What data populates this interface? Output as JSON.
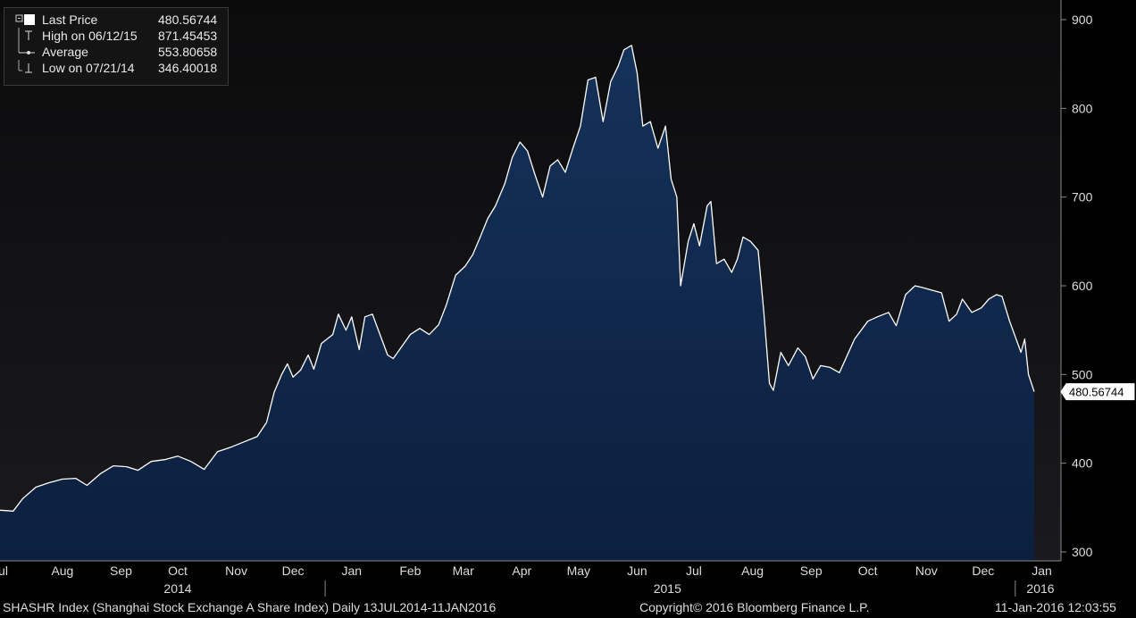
{
  "chart_data": {
    "type": "area",
    "title": "",
    "ylim": [
      290,
      925
    ],
    "yticks": [
      300,
      400,
      500,
      600,
      700,
      800,
      900
    ],
    "x_start": "2014-07-13",
    "x_end": "2016-01-11",
    "month_ticks": [
      {
        "label": "Jul",
        "date": "2014-07-13"
      },
      {
        "label": "Aug",
        "date": "2014-08-15"
      },
      {
        "label": "Sep",
        "date": "2014-09-15"
      },
      {
        "label": "Oct",
        "date": "2014-10-15"
      },
      {
        "label": "Nov",
        "date": "2014-11-15"
      },
      {
        "label": "Dec",
        "date": "2014-12-15"
      },
      {
        "label": "Jan",
        "date": "2015-01-15"
      },
      {
        "label": "Feb",
        "date": "2015-02-15"
      },
      {
        "label": "Mar",
        "date": "2015-03-15"
      },
      {
        "label": "Apr",
        "date": "2015-04-15"
      },
      {
        "label": "May",
        "date": "2015-05-15"
      },
      {
        "label": "Jun",
        "date": "2015-06-15"
      },
      {
        "label": "Jul",
        "date": "2015-07-15"
      },
      {
        "label": "Aug",
        "date": "2015-08-15"
      },
      {
        "label": "Sep",
        "date": "2015-09-15"
      },
      {
        "label": "Oct",
        "date": "2015-10-15"
      },
      {
        "label": "Nov",
        "date": "2015-11-15"
      },
      {
        "label": "Dec",
        "date": "2015-12-15"
      },
      {
        "label": "Jan",
        "date": "2016-01-15"
      }
    ],
    "year_labels": [
      {
        "label": "2014",
        "date": "2014-10-15"
      },
      {
        "label": "2015",
        "date": "2015-07-01"
      },
      {
        "label": "2016",
        "date": "2016-01-15"
      }
    ],
    "year_dividers": [
      "2015-01-01",
      "2016-01-01"
    ],
    "series": [
      {
        "name": "Last Price",
        "points": [
          [
            "2014-07-13",
            347
          ],
          [
            "2014-07-20",
            346
          ],
          [
            "2014-07-25",
            360
          ],
          [
            "2014-08-01",
            373
          ],
          [
            "2014-08-08",
            378
          ],
          [
            "2014-08-15",
            382
          ],
          [
            "2014-08-22",
            383
          ],
          [
            "2014-08-28",
            375
          ],
          [
            "2014-09-04",
            388
          ],
          [
            "2014-09-11",
            397
          ],
          [
            "2014-09-18",
            396
          ],
          [
            "2014-09-24",
            392
          ],
          [
            "2014-10-01",
            402
          ],
          [
            "2014-10-08",
            404
          ],
          [
            "2014-10-15",
            408
          ],
          [
            "2014-10-22",
            402
          ],
          [
            "2014-10-29",
            393
          ],
          [
            "2014-11-05",
            413
          ],
          [
            "2014-11-12",
            418
          ],
          [
            "2014-11-19",
            424
          ],
          [
            "2014-11-26",
            430
          ],
          [
            "2014-12-01",
            446
          ],
          [
            "2014-12-05",
            480
          ],
          [
            "2014-12-09",
            500
          ],
          [
            "2014-12-12",
            512
          ],
          [
            "2014-12-15",
            497
          ],
          [
            "2014-12-19",
            505
          ],
          [
            "2014-12-23",
            522
          ],
          [
            "2014-12-26",
            506
          ],
          [
            "2014-12-30",
            535
          ],
          [
            "2015-01-05",
            545
          ],
          [
            "2015-01-08",
            568
          ],
          [
            "2015-01-12",
            550
          ],
          [
            "2015-01-15",
            565
          ],
          [
            "2015-01-19",
            528
          ],
          [
            "2015-01-22",
            565
          ],
          [
            "2015-01-26",
            568
          ],
          [
            "2015-01-30",
            545
          ],
          [
            "2015-02-03",
            522
          ],
          [
            "2015-02-06",
            518
          ],
          [
            "2015-02-10",
            530
          ],
          [
            "2015-02-15",
            545
          ],
          [
            "2015-02-20",
            552
          ],
          [
            "2015-02-25",
            545
          ],
          [
            "2015-03-02",
            556
          ],
          [
            "2015-03-06",
            578
          ],
          [
            "2015-03-11",
            612
          ],
          [
            "2015-03-16",
            622
          ],
          [
            "2015-03-20",
            635
          ],
          [
            "2015-03-24",
            655
          ],
          [
            "2015-03-28",
            676
          ],
          [
            "2015-04-01",
            690
          ],
          [
            "2015-04-06",
            715
          ],
          [
            "2015-04-10",
            745
          ],
          [
            "2015-04-14",
            762
          ],
          [
            "2015-04-18",
            752
          ],
          [
            "2015-04-22",
            725
          ],
          [
            "2015-04-26",
            700
          ],
          [
            "2015-04-30",
            735
          ],
          [
            "2015-05-04",
            742
          ],
          [
            "2015-05-08",
            728
          ],
          [
            "2015-05-12",
            755
          ],
          [
            "2015-05-16",
            780
          ],
          [
            "2015-05-20",
            832
          ],
          [
            "2015-05-24",
            835
          ],
          [
            "2015-05-28",
            785
          ],
          [
            "2015-06-01",
            830
          ],
          [
            "2015-06-05",
            848
          ],
          [
            "2015-06-08",
            866
          ],
          [
            "2015-06-12",
            871
          ],
          [
            "2015-06-15",
            840
          ],
          [
            "2015-06-18",
            780
          ],
          [
            "2015-06-22",
            785
          ],
          [
            "2015-06-26",
            755
          ],
          [
            "2015-06-30",
            780
          ],
          [
            "2015-07-03",
            720
          ],
          [
            "2015-07-06",
            700
          ],
          [
            "2015-07-08",
            600
          ],
          [
            "2015-07-12",
            650
          ],
          [
            "2015-07-15",
            670
          ],
          [
            "2015-07-18",
            645
          ],
          [
            "2015-07-22",
            690
          ],
          [
            "2015-07-24",
            695
          ],
          [
            "2015-07-27",
            625
          ],
          [
            "2015-07-31",
            630
          ],
          [
            "2015-08-04",
            615
          ],
          [
            "2015-08-07",
            630
          ],
          [
            "2015-08-10",
            655
          ],
          [
            "2015-08-14",
            650
          ],
          [
            "2015-08-18",
            640
          ],
          [
            "2015-08-21",
            570
          ],
          [
            "2015-08-24",
            490
          ],
          [
            "2015-08-26",
            482
          ],
          [
            "2015-08-30",
            525
          ],
          [
            "2015-09-03",
            510
          ],
          [
            "2015-09-08",
            530
          ],
          [
            "2015-09-12",
            520
          ],
          [
            "2015-09-16",
            495
          ],
          [
            "2015-09-20",
            510
          ],
          [
            "2015-09-25",
            508
          ],
          [
            "2015-09-30",
            502
          ],
          [
            "2015-10-08",
            540
          ],
          [
            "2015-10-15",
            560
          ],
          [
            "2015-10-20",
            565
          ],
          [
            "2015-10-26",
            570
          ],
          [
            "2015-10-30",
            555
          ],
          [
            "2015-11-04",
            590
          ],
          [
            "2015-11-09",
            600
          ],
          [
            "2015-11-13",
            598
          ],
          [
            "2015-11-18",
            595
          ],
          [
            "2015-11-23",
            592
          ],
          [
            "2015-11-27",
            560
          ],
          [
            "2015-12-01",
            568
          ],
          [
            "2015-12-04",
            585
          ],
          [
            "2015-12-09",
            570
          ],
          [
            "2015-12-14",
            575
          ],
          [
            "2015-12-18",
            585
          ],
          [
            "2015-12-22",
            590
          ],
          [
            "2015-12-25",
            588
          ],
          [
            "2015-12-29",
            560
          ],
          [
            "2016-01-04",
            525
          ],
          [
            "2016-01-06",
            540
          ],
          [
            "2016-01-08",
            500
          ],
          [
            "2016-01-11",
            480.56744
          ]
        ]
      }
    ],
    "last_value_label": "480.56744",
    "legend": [
      {
        "icon": "last",
        "label": "Last Price",
        "value": "480.56744"
      },
      {
        "icon": "high",
        "label": "High on 06/12/15",
        "value": "871.45453"
      },
      {
        "icon": "avg",
        "label": "Average",
        "value": "553.80658"
      },
      {
        "icon": "low",
        "label": "Low on 07/21/14",
        "value": "346.40018"
      }
    ],
    "colors": {
      "bg_top": "#0b0b0c",
      "bg_bottom": "#1a1a1e",
      "area_top": "#15325a",
      "area_bottom": "#0c1f3e",
      "line": "#ffffff",
      "axis": "#8a8a8a"
    }
  },
  "footer": {
    "left": "SHASHR Index (Shanghai Stock Exchange A Share Index)  Daily 13JUL2014-11JAN2016",
    "center": "Copyright© 2016 Bloomberg Finance L.P.",
    "right": "11-Jan-2016 12:03:55"
  }
}
